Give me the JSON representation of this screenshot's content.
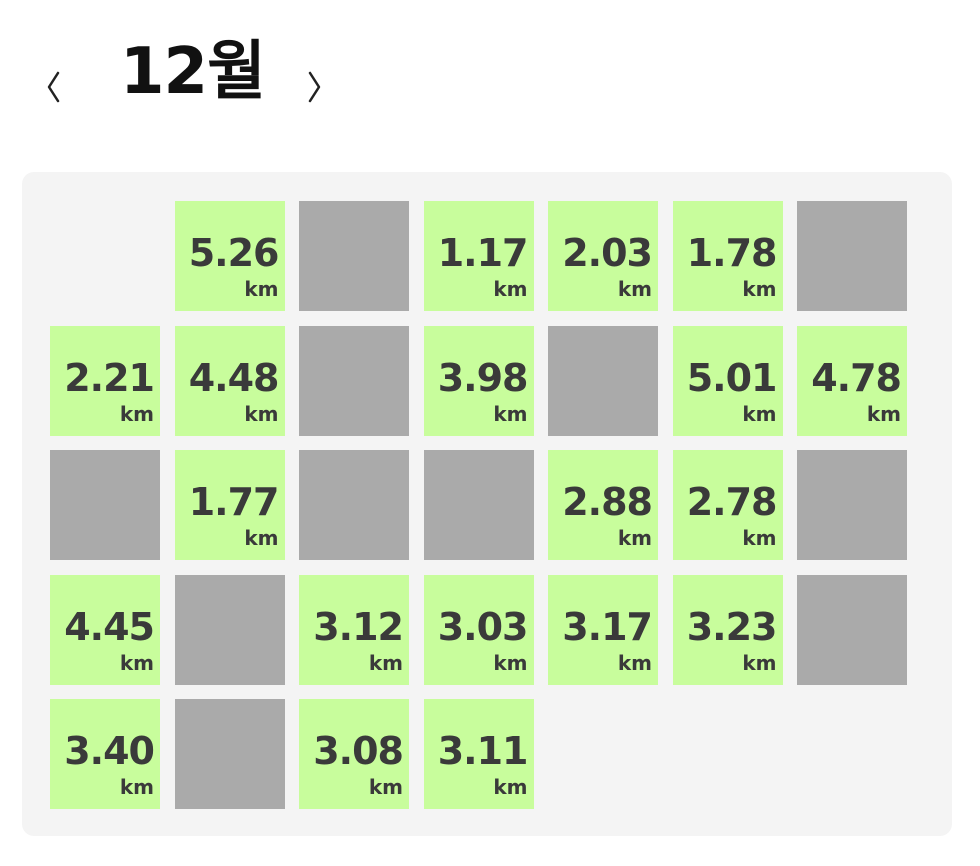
{
  "header": {
    "month_title": "12월",
    "prev_icon": "chevron-left-icon",
    "next_icon": "chevron-right-icon"
  },
  "calendar": {
    "unit_label": "km",
    "colors": {
      "run": "#c8fd9c",
      "rest": "#aaaaaa",
      "panel": "#f4f4f4",
      "text": "#3a3a3a"
    },
    "weeks": [
      [
        {
          "type": "empty"
        },
        {
          "type": "run",
          "distance": "5.26"
        },
        {
          "type": "rest"
        },
        {
          "type": "run",
          "distance": "1.17"
        },
        {
          "type": "run",
          "distance": "2.03"
        },
        {
          "type": "run",
          "distance": "1.78"
        },
        {
          "type": "rest"
        }
      ],
      [
        {
          "type": "run",
          "distance": "2.21"
        },
        {
          "type": "run",
          "distance": "4.48"
        },
        {
          "type": "rest"
        },
        {
          "type": "run",
          "distance": "3.98"
        },
        {
          "type": "rest"
        },
        {
          "type": "run",
          "distance": "5.01"
        },
        {
          "type": "run",
          "distance": "4.78"
        }
      ],
      [
        {
          "type": "rest"
        },
        {
          "type": "run",
          "distance": "1.77"
        },
        {
          "type": "rest"
        },
        {
          "type": "rest"
        },
        {
          "type": "run",
          "distance": "2.88"
        },
        {
          "type": "run",
          "distance": "2.78"
        },
        {
          "type": "rest"
        }
      ],
      [
        {
          "type": "run",
          "distance": "4.45"
        },
        {
          "type": "rest"
        },
        {
          "type": "run",
          "distance": "3.12"
        },
        {
          "type": "run",
          "distance": "3.03"
        },
        {
          "type": "run",
          "distance": "3.17"
        },
        {
          "type": "run",
          "distance": "3.23"
        },
        {
          "type": "rest"
        }
      ],
      [
        {
          "type": "run",
          "distance": "3.40"
        },
        {
          "type": "rest"
        },
        {
          "type": "run",
          "distance": "3.08"
        },
        {
          "type": "run",
          "distance": "3.11"
        }
      ]
    ]
  }
}
